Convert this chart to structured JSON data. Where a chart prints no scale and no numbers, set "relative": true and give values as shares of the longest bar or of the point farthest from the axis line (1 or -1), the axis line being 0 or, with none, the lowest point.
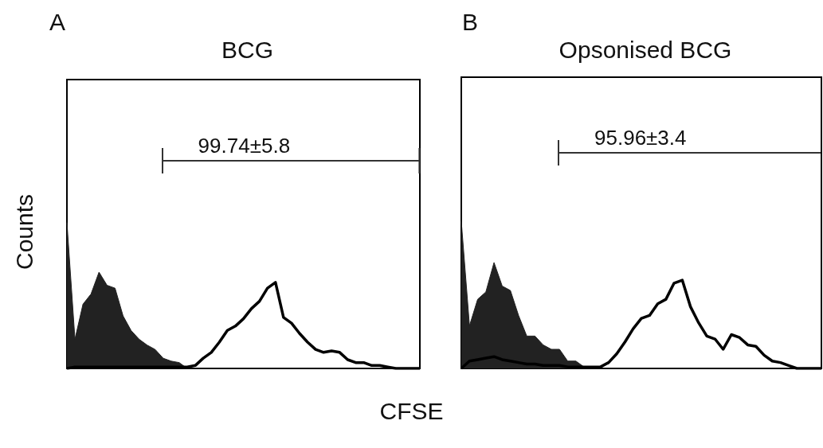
{
  "chart_data": [
    {
      "type": "area",
      "title": "BCG",
      "ylabel": "Counts",
      "xlabel": "CFSE",
      "relative": true,
      "annotations": [
        "A",
        "99.74±5.8"
      ],
      "categories": [
        null,
        null,
        null,
        null,
        null,
        null,
        null,
        null,
        null,
        null,
        null,
        null,
        null,
        null,
        null,
        null,
        null,
        null,
        null,
        null,
        null,
        null,
        null,
        null,
        null,
        null,
        null,
        null,
        null,
        null,
        null,
        null,
        null,
        null,
        null,
        null,
        null,
        null,
        null,
        null,
        null,
        null,
        null,
        null,
        null
      ],
      "series": [
        {
          "color": "#222222",
          "values": [
            1.0,
            0.2,
            0.44,
            0.51,
            0.66,
            0.57,
            0.55,
            0.36,
            0.26,
            0.2,
            0.16,
            0.13,
            0.07,
            0.05,
            0.04,
            0,
            0,
            0,
            0,
            0,
            0,
            0,
            0,
            0,
            0,
            0,
            0,
            0,
            0,
            0,
            0,
            0,
            0,
            0,
            0,
            0,
            0,
            0,
            0,
            0,
            0,
            0,
            0,
            0,
            0
          ]
        },
        {
          "type": "line",
          "color": "#000000",
          "values": [
            0,
            0.01,
            0.01,
            0.01,
            0.01,
            0.01,
            0.01,
            0.01,
            0.01,
            0.01,
            0.01,
            0.01,
            0.01,
            0.01,
            0.01,
            0.01,
            0.02,
            0.07,
            0.11,
            0.18,
            0.26,
            0.29,
            0.34,
            0.41,
            0.46,
            0.55,
            0.59,
            0.35,
            0.31,
            0.24,
            0.18,
            0.13,
            0.11,
            0.12,
            0.11,
            0.06,
            0.04,
            0.04,
            0.02,
            0.02,
            0.01,
            0,
            0,
            0,
            0
          ]
        }
      ]
    },
    {
      "type": "area",
      "title": "Opsonised BCG",
      "relative": true,
      "annotations": [
        "B",
        "95.96±3.4"
      ],
      "categories": [
        null,
        null,
        null,
        null,
        null,
        null,
        null,
        null,
        null,
        null,
        null,
        null,
        null,
        null,
        null,
        null,
        null,
        null,
        null,
        null,
        null,
        null,
        null,
        null,
        null,
        null,
        null,
        null,
        null,
        null,
        null,
        null,
        null,
        null,
        null,
        null,
        null,
        null,
        null,
        null,
        null,
        null,
        null,
        null,
        null
      ],
      "series": [
        {
          "color": "#222222",
          "values": [
            1.0,
            0.29,
            0.47,
            0.52,
            0.72,
            0.56,
            0.53,
            0.36,
            0.22,
            0.22,
            0.16,
            0.13,
            0.13,
            0.05,
            0.05,
            0.01,
            0,
            0,
            0,
            0,
            0,
            0,
            0,
            0,
            0,
            0,
            0,
            0,
            0,
            0,
            0,
            0,
            0,
            0,
            0,
            0,
            0,
            0,
            0,
            0,
            0,
            0,
            0,
            0,
            0
          ]
        },
        {
          "type": "line",
          "color": "#000000",
          "values": [
            0,
            0.05,
            0.06,
            0.07,
            0.08,
            0.06,
            0.05,
            0.04,
            0.03,
            0.03,
            0.02,
            0.02,
            0.02,
            0.01,
            0.01,
            0.01,
            0.01,
            0.01,
            0.04,
            0.1,
            0.18,
            0.27,
            0.34,
            0.36,
            0.44,
            0.47,
            0.58,
            0.6,
            0.42,
            0.31,
            0.22,
            0.2,
            0.13,
            0.23,
            0.21,
            0.16,
            0.15,
            0.09,
            0.05,
            0.04,
            0.02,
            0,
            0,
            0,
            0
          ]
        }
      ]
    }
  ]
}
